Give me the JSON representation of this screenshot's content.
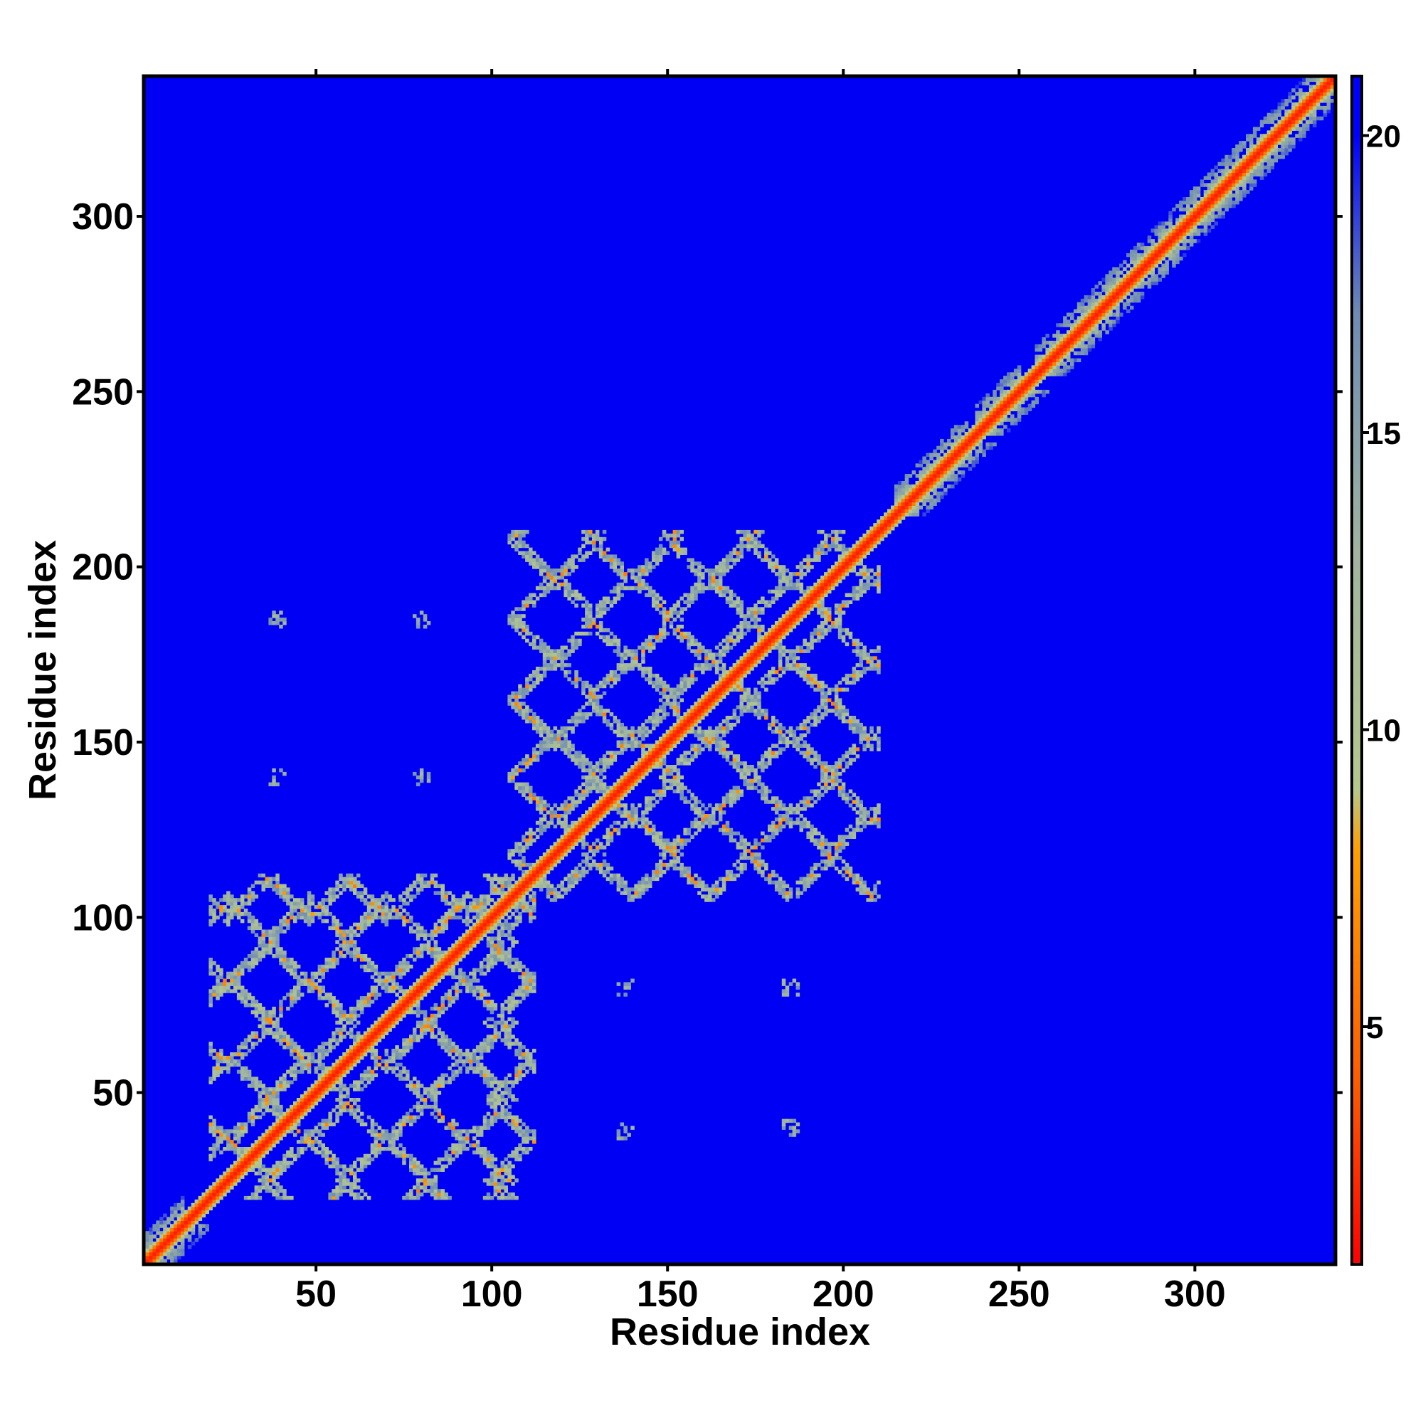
{
  "chart_data": {
    "type": "heatmap",
    "title": "",
    "xlabel": "Residue index",
    "ylabel": "Residue index",
    "xlim": [
      1,
      340
    ],
    "ylim": [
      1,
      340
    ],
    "x_ticks": [
      50,
      100,
      150,
      200,
      250,
      300
    ],
    "y_ticks": [
      50,
      100,
      150,
      200,
      250,
      300
    ],
    "colorbar": {
      "ticks": [
        5,
        10,
        15,
        20
      ],
      "range": [
        1,
        21
      ],
      "stops": [
        {
          "value": 1,
          "color": "#ff0000"
        },
        {
          "value": 4,
          "color": "#ff5a00"
        },
        {
          "value": 8,
          "color": "#ffa000"
        },
        {
          "value": 9,
          "color": "#b4c88c"
        },
        {
          "value": 13,
          "color": "#a0b4a0"
        },
        {
          "value": 17,
          "color": "#6e8cb4"
        },
        {
          "value": 20,
          "color": "#0000ff"
        },
        {
          "value": 21,
          "color": "#0000ff"
        }
      ]
    },
    "background_value": 21,
    "background_color": "#0000f5",
    "diagonal": {
      "from": 1,
      "to": 340,
      "core_value": 2
    },
    "helix_diagonal_bands": [
      {
        "from": 1,
        "to": 12
      },
      {
        "from": 215,
        "to": 235
      },
      {
        "from": 238,
        "to": 250
      },
      {
        "from": 255,
        "to": 300
      },
      {
        "from": 300,
        "to": 340
      }
    ],
    "contact_domains": [
      {
        "x_range": [
          20,
          112
        ],
        "y_range": [
          20,
          112
        ],
        "repeat_lattice_residues": [
          25,
          48,
          70,
          93,
          112
        ]
      },
      {
        "x_range": [
          105,
          210
        ],
        "y_range": [
          105,
          210
        ],
        "repeat_lattice_residues": [
          118,
          140,
          162,
          185,
          208
        ]
      }
    ],
    "off_diagonal_contacts": [
      {
        "x": 39,
        "y": 185
      },
      {
        "x": 80,
        "y": 185
      },
      {
        "x": 39,
        "y": 140
      },
      {
        "x": 80,
        "y": 140
      },
      {
        "x": 138,
        "y": 80
      },
      {
        "x": 185,
        "y": 80
      },
      {
        "x": 138,
        "y": 39
      },
      {
        "x": 185,
        "y": 40
      }
    ]
  }
}
